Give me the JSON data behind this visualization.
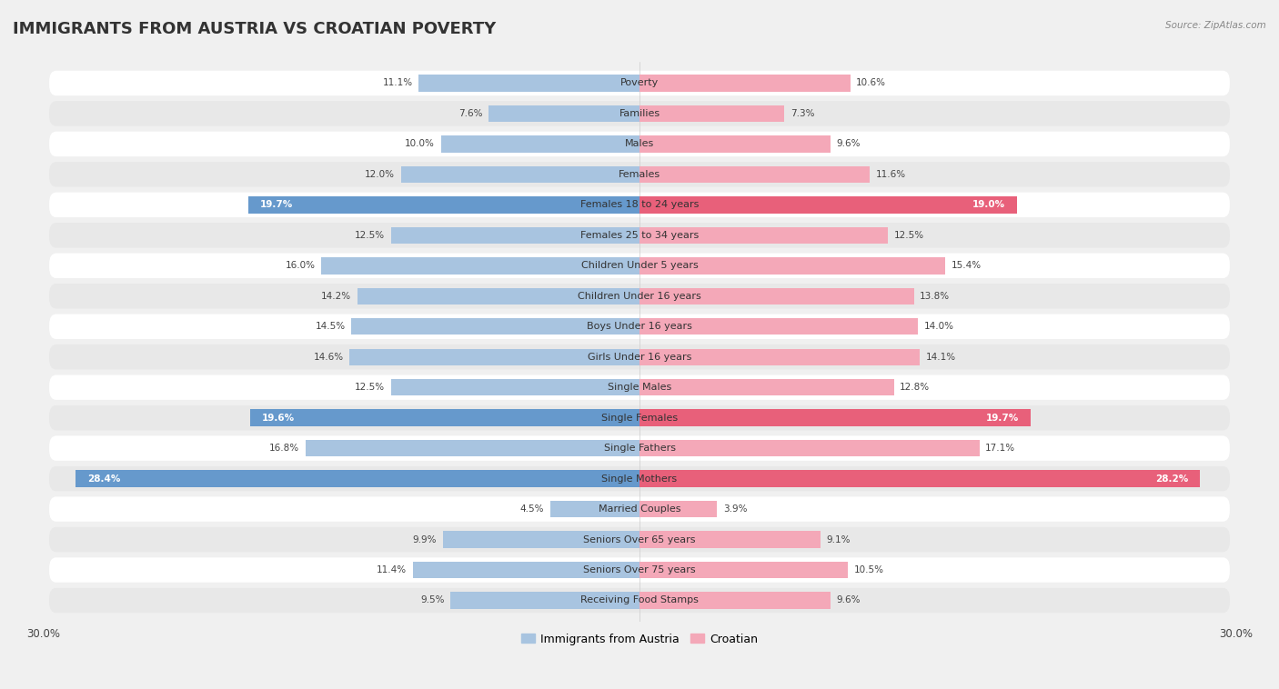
{
  "title": "IMMIGRANTS FROM AUSTRIA VS CROATIAN POVERTY",
  "source": "Source: ZipAtlas.com",
  "categories": [
    "Poverty",
    "Families",
    "Males",
    "Females",
    "Females 18 to 24 years",
    "Females 25 to 34 years",
    "Children Under 5 years",
    "Children Under 16 years",
    "Boys Under 16 years",
    "Girls Under 16 years",
    "Single Males",
    "Single Females",
    "Single Fathers",
    "Single Mothers",
    "Married Couples",
    "Seniors Over 65 years",
    "Seniors Over 75 years",
    "Receiving Food Stamps"
  ],
  "austria_values": [
    11.1,
    7.6,
    10.0,
    12.0,
    19.7,
    12.5,
    16.0,
    14.2,
    14.5,
    14.6,
    12.5,
    19.6,
    16.8,
    28.4,
    4.5,
    9.9,
    11.4,
    9.5
  ],
  "croatian_values": [
    10.6,
    7.3,
    9.6,
    11.6,
    19.0,
    12.5,
    15.4,
    13.8,
    14.0,
    14.1,
    12.8,
    19.7,
    17.1,
    28.2,
    3.9,
    9.1,
    10.5,
    9.6
  ],
  "austria_color": "#a8c4e0",
  "croatian_color": "#f4a8b8",
  "austria_highlight_indices": [
    4,
    11,
    13
  ],
  "croatian_highlight_indices": [
    4,
    11,
    13
  ],
  "austria_highlight_color": "#6699cc",
  "croatian_highlight_color": "#e8607a",
  "background_color": "#f0f0f0",
  "row_bg_color": "#ffffff",
  "row_alt_color": "#e8e8e8",
  "xlim": 30.0,
  "bar_height": 0.55,
  "legend_austria": "Immigrants from Austria",
  "legend_croatian": "Croatian",
  "title_fontsize": 13,
  "label_fontsize": 8,
  "value_fontsize": 7.5,
  "axis_fontsize": 8.5
}
